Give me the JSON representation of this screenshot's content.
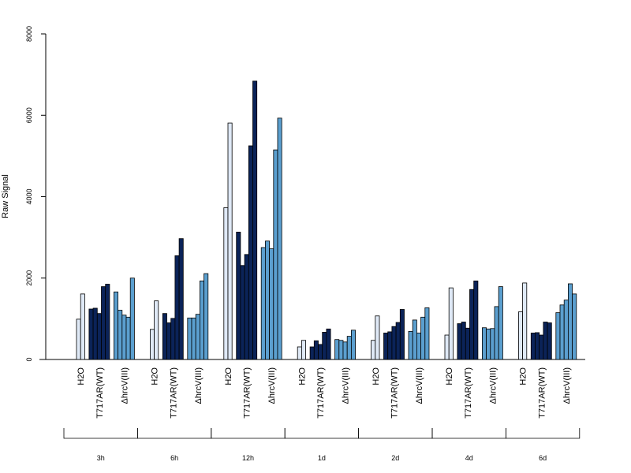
{
  "chart_data": {
    "type": "bar",
    "ylabel": "Raw Signal",
    "ylim": [
      0,
      8000
    ],
    "yticks": [
      0,
      2000,
      4000,
      6000,
      8000
    ],
    "colors": {
      "H2O": "#dfe9f6",
      "T717AR(WT)": "#0b2358",
      "ΔhrcV(III)": "#5b9fcf"
    },
    "timepoints": [
      {
        "label": "3h",
        "categories": [
          {
            "label": "H2O",
            "values": [
              990,
              1610
            ]
          },
          {
            "label": "T717AR(WT)",
            "values": [
              1240,
              1260,
              1130,
              1790,
              1850
            ]
          },
          {
            "label": "ΔhrcV(III)",
            "values": [
              1660,
              1210,
              1090,
              1040,
              2000
            ]
          }
        ]
      },
      {
        "label": "6h",
        "categories": [
          {
            "label": "H2O",
            "values": [
              740,
              1440
            ]
          },
          {
            "label": "T717AR(WT)",
            "values": [
              1130,
              900,
              1010,
              2550,
              2970
            ]
          },
          {
            "label": "ΔhrcV(III)",
            "values": [
              1020,
              1020,
              1110,
              1930,
              2110
            ]
          }
        ]
      },
      {
        "label": "12h",
        "categories": [
          {
            "label": "H2O",
            "values": [
              3730,
              5810
            ]
          },
          {
            "label": "T717AR(WT)",
            "values": [
              3130,
              2310,
              2580,
              5250,
              6840
            ]
          },
          {
            "label": "ΔhrcV(III)",
            "values": [
              2750,
              2910,
              2720,
              5150,
              5930
            ]
          }
        ]
      },
      {
        "label": "1d",
        "categories": [
          {
            "label": "H2O",
            "values": [
              310,
              470
            ]
          },
          {
            "label": "T717AR(WT)",
            "values": [
              310,
              460,
              370,
              670,
              750
            ]
          },
          {
            "label": "ΔhrcV(III)",
            "values": [
              490,
              470,
              430,
              570,
              720
            ]
          }
        ]
      },
      {
        "label": "2d",
        "categories": [
          {
            "label": "H2O",
            "values": [
              470,
              1070
            ]
          },
          {
            "label": "T717AR(WT)",
            "values": [
              650,
              680,
              810,
              910,
              1230
            ]
          },
          {
            "label": "ΔhrcV(III)",
            "values": [
              690,
              970,
              650,
              1040,
              1270
            ]
          }
        ]
      },
      {
        "label": "4d",
        "categories": [
          {
            "label": "H2O",
            "values": [
              600,
              1760
            ]
          },
          {
            "label": "T717AR(WT)",
            "values": [
              880,
              920,
              770,
              1720,
              1930
            ]
          },
          {
            "label": "ΔhrcV(III)",
            "values": [
              780,
              750,
              760,
              1300,
              1790
            ]
          }
        ]
      },
      {
        "label": "6d",
        "categories": [
          {
            "label": "H2O",
            "values": [
              1170,
              1880
            ]
          },
          {
            "label": "T717AR(WT)",
            "values": [
              650,
              660,
              600,
              920,
              900
            ]
          },
          {
            "label": "ΔhrcV(III)",
            "values": [
              1150,
              1340,
              1460,
              1860,
              1610
            ]
          }
        ]
      }
    ]
  }
}
